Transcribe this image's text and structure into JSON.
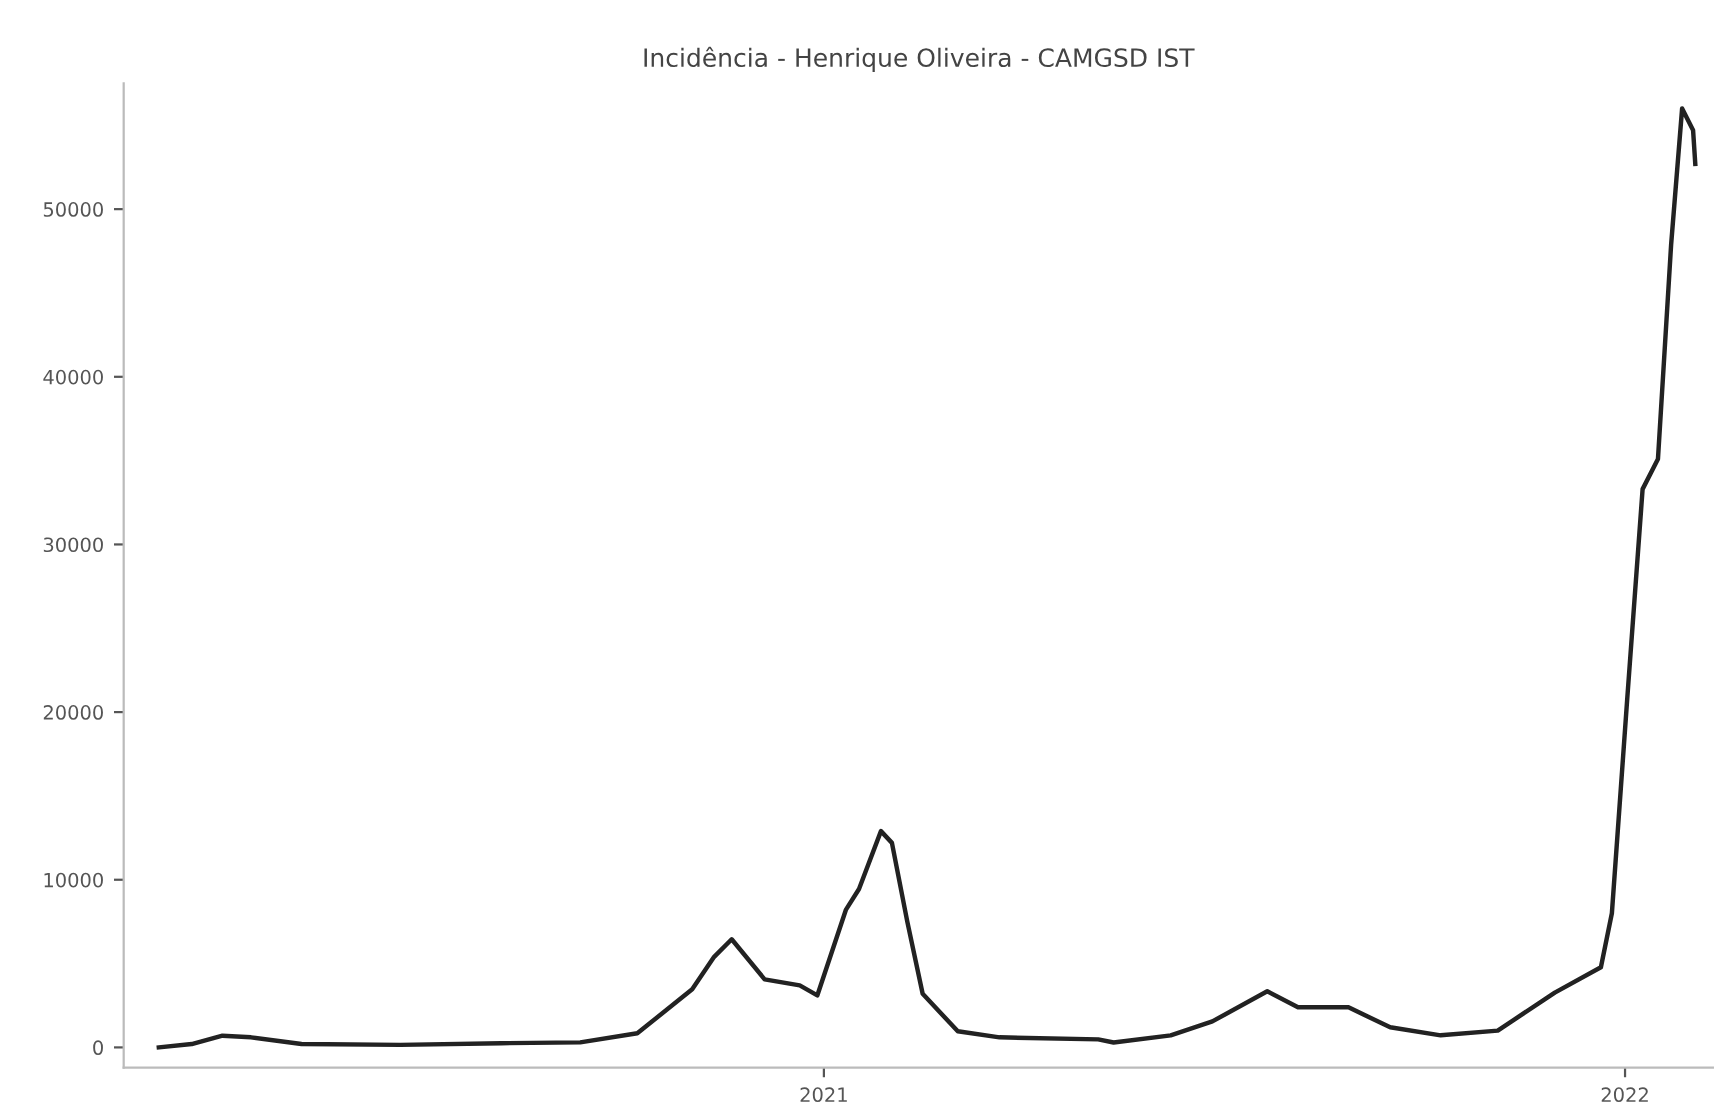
{
  "chart_data": {
    "type": "line",
    "title": "Incidência - Henrique Oliveira - CAMGSD IST",
    "x": [
      "2020-03-04",
      "2020-03-19",
      "2020-04-02",
      "2020-04-15",
      "2020-05-08",
      "2020-06-22",
      "2020-08-07",
      "2020-09-12",
      "2020-10-08",
      "2020-11-02",
      "2020-11-12",
      "2020-11-20",
      "2020-12-05",
      "2020-12-21",
      "2020-12-29",
      "2021-01-11",
      "2021-01-17",
      "2021-01-27",
      "2021-02-01",
      "2021-02-08",
      "2021-02-15",
      "2021-03-03",
      "2021-03-22",
      "2021-05-06",
      "2021-05-13",
      "2021-06-08",
      "2021-06-27",
      "2021-07-22",
      "2021-08-05",
      "2021-08-28",
      "2021-09-16",
      "2021-10-09",
      "2021-11-04",
      "2021-11-30",
      "2021-12-21",
      "2021-12-26",
      "2022-01-02",
      "2022-01-09",
      "2022-01-16",
      "2022-01-22",
      "2022-01-27",
      "2022-02-01",
      "2022-02-02"
    ],
    "series": [
      {
        "color": "#222222",
        "values": [
          0,
          200,
          700,
          600,
          200,
          150,
          250,
          300,
          840,
          3470,
          5400,
          6450,
          4060,
          3700,
          3100,
          8200,
          9450,
          12900,
          12200,
          7500,
          3200,
          960,
          600,
          480,
          290,
          720,
          1550,
          3350,
          2390,
          2390,
          1200,
          720,
          1000,
          3270,
          4780,
          8000,
          20800,
          33300,
          35100,
          47900,
          56000,
          54700,
          52700
        ]
      }
    ],
    "xlim": [
      "2020-02-17",
      "2022-02-10"
    ],
    "xticks": [
      {
        "value": "2021-01-01",
        "label": "2021"
      },
      {
        "value": "2022-01-01",
        "label": "2022"
      }
    ],
    "ylim": [
      -1200,
      57500
    ],
    "yticks": [
      0,
      10000,
      20000,
      30000,
      40000,
      50000
    ],
    "grid": false,
    "legend": false,
    "marker": "none",
    "line_style": "solid"
  }
}
